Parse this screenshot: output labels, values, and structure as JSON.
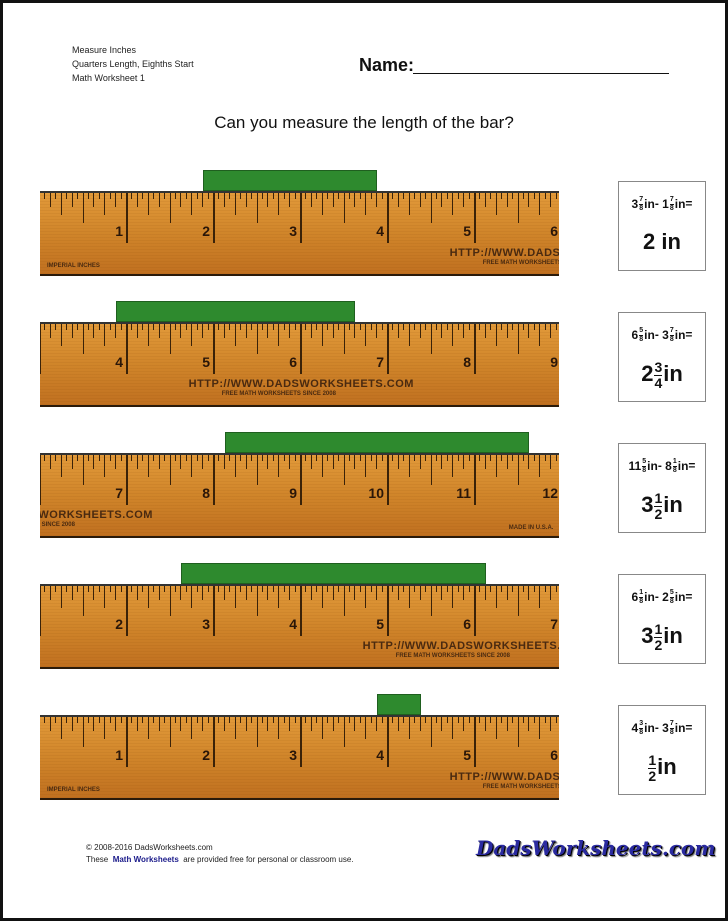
{
  "header": {
    "lines": [
      "Measure Inches",
      "Quarters Length, Eighths Start",
      "Math Worksheet 1"
    ],
    "name_label": "Name:"
  },
  "prompt": "Can you measure the length of the bar?",
  "ruler_text": {
    "imperial": "IMPERIAL INCHES",
    "url": "HTTP://WWW.DADSWORKSHEETS.COM",
    "sub": "FREE MATH WORKSHEETS SINCE 2008",
    "made": "MADE IN U.S.A."
  },
  "bar_color": "#2e8a2e",
  "problems": [
    {
      "ruler_start": 0,
      "bar_start": 1.875,
      "bar_end": 3.875,
      "q": {
        "a_whole": "3",
        "a_num": "7",
        "a_den": "8",
        "b_whole": "1",
        "b_num": "7",
        "b_den": "8",
        "unit": "in",
        "minus": "-",
        "eq": "="
      },
      "ans": {
        "whole": "2",
        "num": "",
        "den": "",
        "unit": "in"
      }
    },
    {
      "ruler_start": 3,
      "bar_start": 3.875,
      "bar_end": 6.625,
      "q": {
        "a_whole": "6",
        "a_num": "5",
        "a_den": "8",
        "b_whole": "3",
        "b_num": "7",
        "b_den": "8",
        "unit": "in",
        "minus": "-",
        "eq": "="
      },
      "ans": {
        "whole": "2",
        "num": "3",
        "den": "4",
        "unit": "in"
      }
    },
    {
      "ruler_start": 6,
      "bar_start": 8.125,
      "bar_end": 11.625,
      "q": {
        "a_whole": "11",
        "a_num": "5",
        "a_den": "8",
        "b_whole": "8",
        "b_num": "1",
        "b_den": "8",
        "unit": "in",
        "minus": "-",
        "eq": "="
      },
      "ans": {
        "whole": "3",
        "num": "1",
        "den": "2",
        "unit": "in"
      }
    },
    {
      "ruler_start": 1,
      "bar_start": 2.625,
      "bar_end": 6.125,
      "q": {
        "a_whole": "6",
        "a_num": "1",
        "a_den": "8",
        "b_whole": "2",
        "b_num": "5",
        "b_den": "8",
        "unit": "in",
        "minus": "-",
        "eq": "="
      },
      "ans": {
        "whole": "3",
        "num": "1",
        "den": "2",
        "unit": "in"
      }
    },
    {
      "ruler_start": 0,
      "bar_start": 3.875,
      "bar_end": 4.375,
      "q": {
        "a_whole": "4",
        "a_num": "3",
        "a_den": "8",
        "b_whole": "3",
        "b_num": "7",
        "b_den": "8",
        "unit": "in",
        "minus": "-",
        "eq": "="
      },
      "ans": {
        "whole": "",
        "num": "1",
        "den": "2",
        "unit": "in"
      }
    }
  ],
  "footer": {
    "copyright": "© 2008-2016 DadsWorksheets.com",
    "pre": "These",
    "link": "Math Worksheets",
    "post": "are provided free for personal or classroom use.",
    "logo": "DadsWorksheets.com"
  }
}
